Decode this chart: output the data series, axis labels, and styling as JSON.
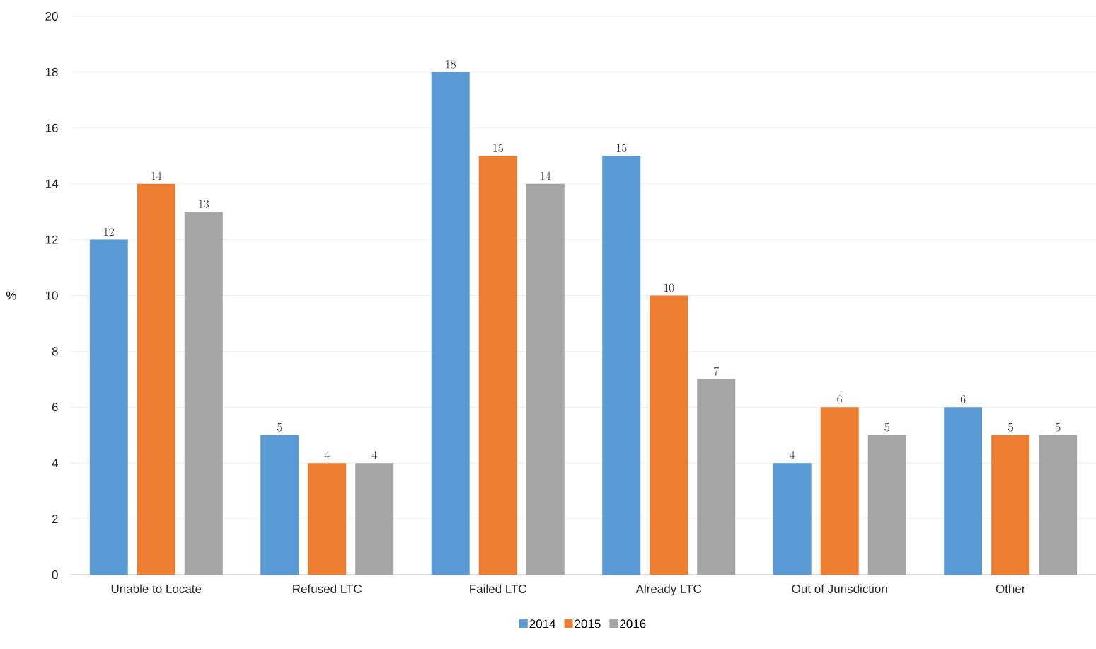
{
  "chart_data": {
    "type": "bar",
    "ylabel": "%",
    "categories": [
      "Unable to Locate",
      "Refused LTC",
      "Failed LTC",
      "Already LTC",
      "Out of Jurisdiction",
      "Other"
    ],
    "series": [
      {
        "name": "2014",
        "color": "#5b9bd5",
        "values": [
          12,
          5,
          18,
          15,
          4,
          6
        ]
      },
      {
        "name": "2015",
        "color": "#ed7d31",
        "values": [
          14,
          4,
          15,
          10,
          6,
          5
        ]
      },
      {
        "name": "2016",
        "color": "#a5a5a5",
        "values": [
          13,
          4,
          14,
          7,
          5,
          5
        ]
      }
    ],
    "ylim": [
      0,
      20
    ],
    "yticks": [
      0,
      2,
      4,
      6,
      8,
      10,
      12,
      14,
      16,
      18,
      20
    ],
    "grid": "y",
    "legend": "bottom",
    "data_labels": true
  }
}
